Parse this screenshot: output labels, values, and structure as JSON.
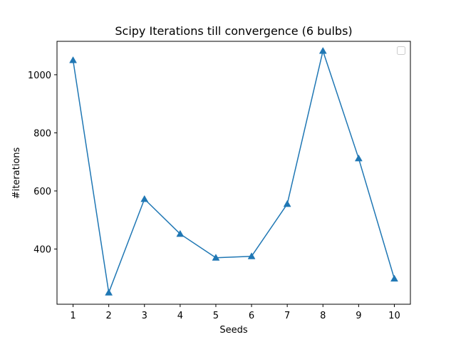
{
  "chart_data": {
    "type": "line",
    "title": "Scipy Iterations till convergence (6 bulbs)",
    "xlabel": "Seeds",
    "ylabel": "#iterations",
    "x": [
      1,
      2,
      3,
      4,
      5,
      6,
      7,
      8,
      9,
      10
    ],
    "xticks": [
      1,
      2,
      3,
      4,
      5,
      6,
      7,
      8,
      9,
      10
    ],
    "yticks": [
      400,
      600,
      800,
      1000
    ],
    "xlim": [
      0.55,
      10.45
    ],
    "ylim": [
      210,
      1115
    ],
    "series": [
      {
        "values": [
          1050,
          250,
          572,
          452,
          370,
          375,
          555,
          1082,
          712,
          298
        ],
        "color": "#1f77b4",
        "marker": "triangle-up"
      }
    ],
    "grid": false,
    "legend": {
      "placement": "top-right",
      "entries": []
    }
  }
}
